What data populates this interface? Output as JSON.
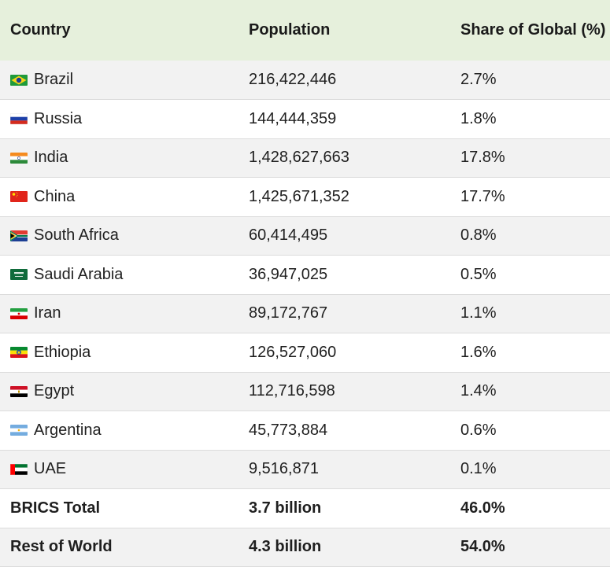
{
  "table": {
    "headers": [
      "Country",
      "Population",
      "Share of Global (%)"
    ],
    "rows": [
      {
        "country": "Brazil",
        "flag": "brazil-flag-icon",
        "population": "216,422,446",
        "share": "2.7%"
      },
      {
        "country": "Russia",
        "flag": "russia-flag-icon",
        "population": "144,444,359",
        "share": "1.8%"
      },
      {
        "country": "India",
        "flag": "india-flag-icon",
        "population": "1,428,627,663",
        "share": "17.8%"
      },
      {
        "country": "China",
        "flag": "china-flag-icon",
        "population": "1,425,671,352",
        "share": "17.7%"
      },
      {
        "country": "South Africa",
        "flag": "south-africa-flag-icon",
        "population": "60,414,495",
        "share": "0.8%"
      },
      {
        "country": "Saudi Arabia",
        "flag": "saudi-arabia-flag-icon",
        "population": "36,947,025",
        "share": "0.5%"
      },
      {
        "country": "Iran",
        "flag": "iran-flag-icon",
        "population": "89,172,767",
        "share": "1.1%"
      },
      {
        "country": "Ethiopia",
        "flag": "ethiopia-flag-icon",
        "population": "126,527,060",
        "share": "1.6%"
      },
      {
        "country": "Egypt",
        "flag": "egypt-flag-icon",
        "population": "112,716,598",
        "share": "1.4%"
      },
      {
        "country": "Argentina",
        "flag": "argentina-flag-icon",
        "population": "45,773,884",
        "share": "0.6%"
      },
      {
        "country": "UAE",
        "flag": "uae-flag-icon",
        "population": "9,516,871",
        "share": "0.1%"
      }
    ],
    "totals": [
      {
        "country": "BRICS Total",
        "population": "3.7 billion",
        "share": "46.0%"
      },
      {
        "country": "Rest of World",
        "population": "4.3 billion",
        "share": "54.0%"
      }
    ]
  },
  "colors": {
    "header_bg": "#e6f0dc",
    "row_odd": "#f2f2f2",
    "row_even": "#ffffff"
  }
}
